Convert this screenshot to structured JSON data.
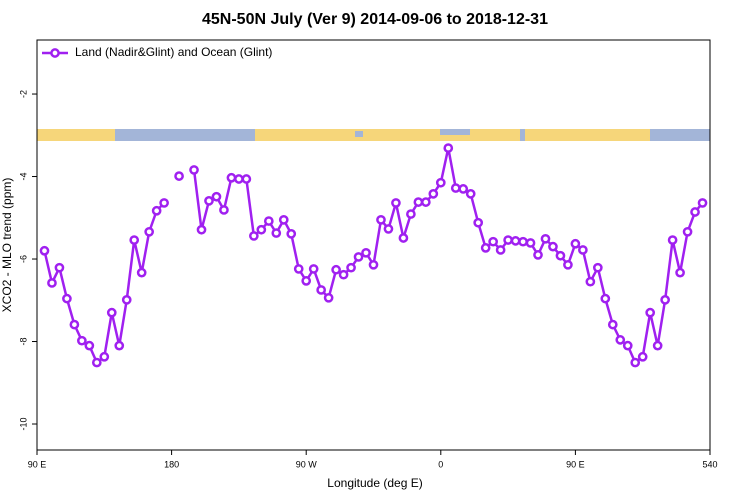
{
  "chart_data": {
    "type": "line",
    "title": "45N-50N July (Ver 9)   2014-09-06 to 2018-12-31",
    "x_label": "Longitude (deg E)",
    "y_label": "XCO2 - MLO trend (ppm)",
    "x": [
      95,
      100,
      105,
      110,
      115,
      120,
      125,
      130,
      135,
      140,
      145,
      150,
      155,
      160,
      165,
      170,
      175,
      180,
      185,
      190,
      195,
      200,
      205,
      210,
      215,
      220,
      225,
      230,
      235,
      240,
      245,
      250,
      255,
      260,
      265,
      270,
      275,
      280,
      285,
      290,
      295,
      300,
      305,
      310,
      315,
      320,
      325,
      330,
      335,
      340,
      345,
      350,
      355,
      360,
      365,
      370,
      375,
      380,
      385,
      390,
      395,
      400,
      405,
      410,
      415,
      420,
      425,
      430,
      435,
      440,
      445,
      450,
      455,
      460,
      465,
      470,
      475,
      480,
      485,
      490,
      495,
      500,
      505,
      510,
      515,
      520,
      525,
      530,
      535
    ],
    "series": [
      {
        "name": "Land (Nadir&Glint) and Ocean (Glint)",
        "color": "#a020f0",
        "values": [
          -5.8,
          -6.58,
          -6.21,
          -6.96,
          -7.59,
          -7.98,
          -8.1,
          -8.51,
          -8.37,
          -7.3,
          -8.1,
          -6.99,
          -5.54,
          -6.33,
          -5.34,
          -4.83,
          -4.64,
          null,
          -3.99,
          null,
          -3.84,
          -5.29,
          -4.59,
          -4.49,
          -4.81,
          -4.03,
          -4.06,
          -4.06,
          -5.44,
          -5.29,
          -5.08,
          -5.37,
          -5.05,
          -5.39,
          -6.24,
          -6.53,
          -6.24,
          -6.75,
          -6.94,
          -6.26,
          -6.38,
          -6.21,
          -5.95,
          -5.85,
          -6.14,
          -5.05,
          -5.27,
          -4.64,
          -5.49,
          -4.91,
          -4.62,
          -4.62,
          -4.42,
          -4.15,
          -3.31,
          -4.28,
          -4.3,
          -4.42,
          -5.12,
          -5.73,
          -5.58,
          -5.78,
          -5.54,
          -5.56,
          -5.58,
          -5.61,
          -5.9,
          -5.51,
          -5.7,
          -5.92,
          -6.14,
          -5.63,
          -5.78,
          -6.55,
          -6.21,
          -6.96,
          -7.59,
          -7.96,
          -8.1,
          -8.51,
          -8.37,
          -7.3,
          -8.1,
          -6.99,
          -5.54,
          -6.33,
          -5.34,
          -4.86,
          -4.64
        ]
      }
    ],
    "xlim": [
      90,
      540
    ],
    "xticks": [
      {
        "value": 90,
        "label": "90 E"
      },
      180,
      {
        "value": 270,
        "label": "90 W"
      },
      {
        "value": 360,
        "label": "0"
      },
      {
        "value": 450,
        "label": "90 E"
      },
      540
    ],
    "ylim": [
      -10.63,
      -0.69
    ],
    "yticks": [
      -2,
      -4,
      -6,
      -8,
      -10
    ],
    "legend": "top-left"
  }
}
